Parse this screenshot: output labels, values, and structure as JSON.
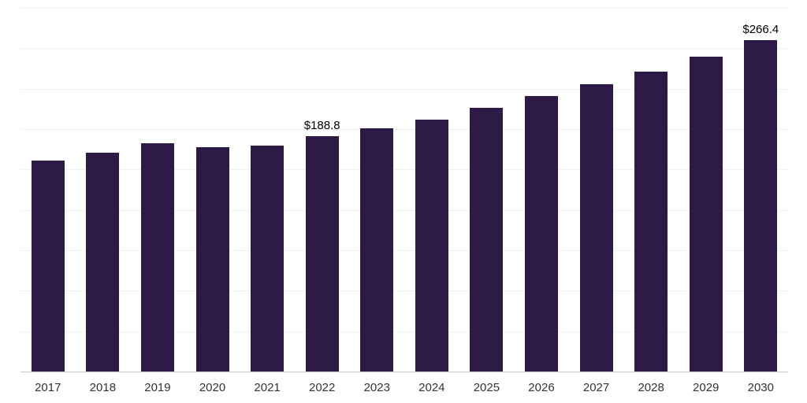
{
  "chart_data": {
    "type": "bar",
    "title": "",
    "xlabel": "",
    "ylabel": "",
    "categories": [
      "2017",
      "2018",
      "2019",
      "2020",
      "2021",
      "2022",
      "2023",
      "2024",
      "2025",
      "2026",
      "2027",
      "2028",
      "2029",
      "2030"
    ],
    "values": [
      169.2,
      176.0,
      183.0,
      180.0,
      181.2,
      188.8,
      195.5,
      202.5,
      212.0,
      221.0,
      231.0,
      241.0,
      253.0,
      266.4
    ],
    "data_labels": {
      "2022": "$188.8",
      "2030": "$266.4"
    },
    "ylim": [
      0,
      292
    ],
    "grid": true,
    "legend": false,
    "bar_color": "#2e1a47",
    "gridline_color": "#f0f0f0",
    "baseline_color": "#cccccc",
    "data_label_color": "#000000",
    "axis_label_color": "#333333"
  }
}
